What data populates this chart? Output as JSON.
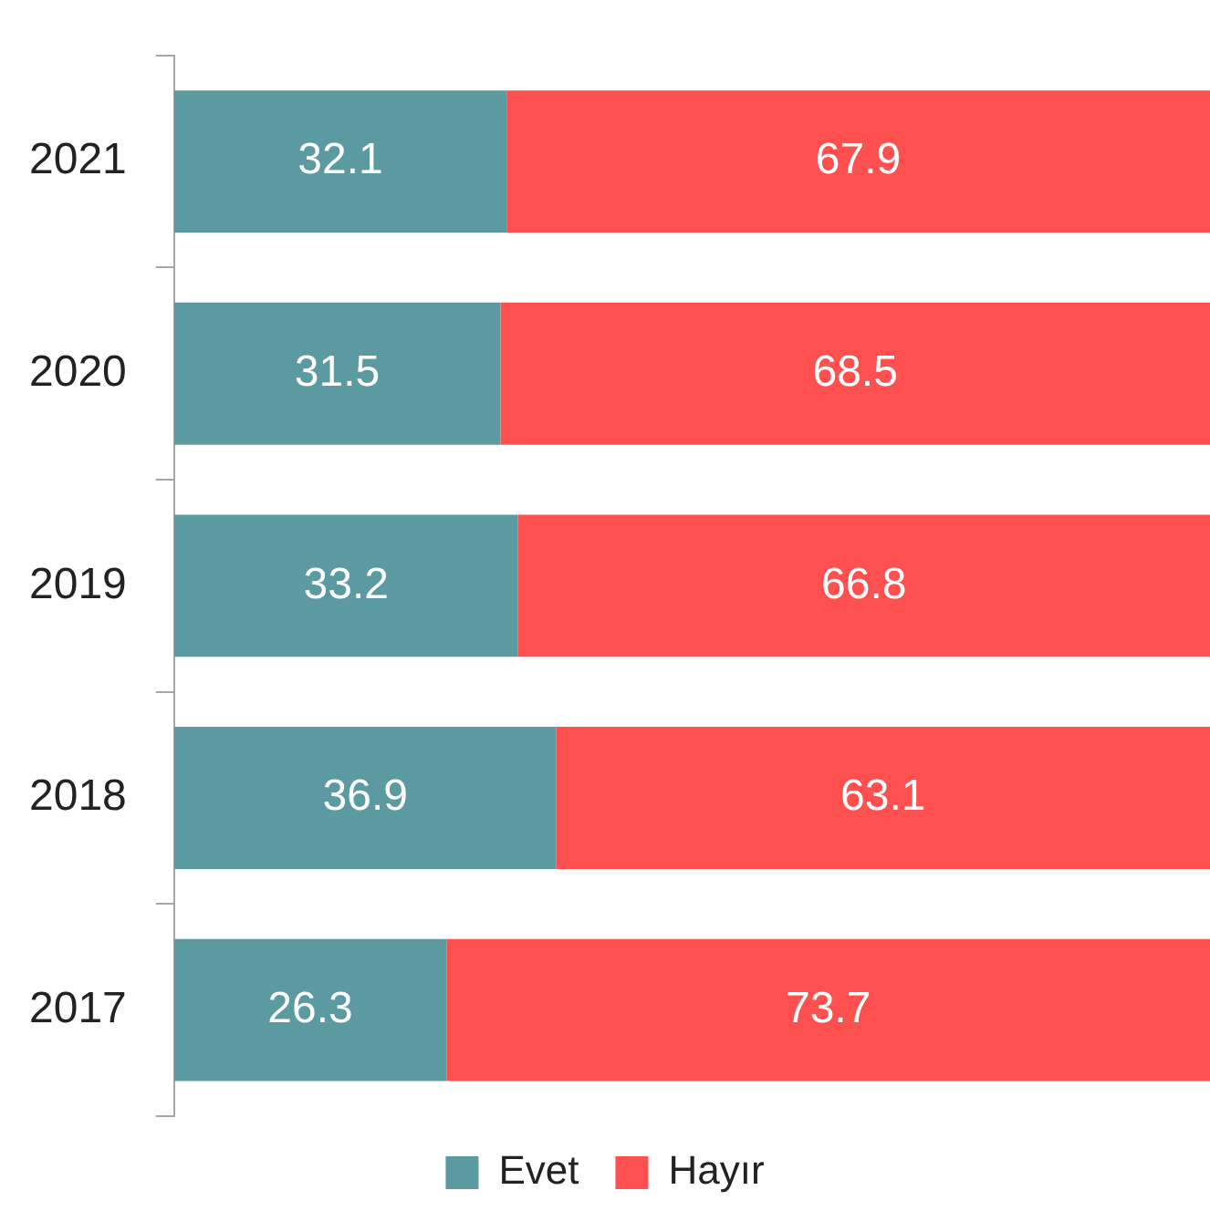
{
  "chart_data": {
    "type": "bar",
    "orientation": "horizontal",
    "stacked": true,
    "categories": [
      "2021",
      "2020",
      "2019",
      "2018",
      "2017"
    ],
    "series": [
      {
        "name": "Evet",
        "color": "#5b9aa0",
        "values": [
          32.1,
          31.5,
          33.2,
          36.9,
          26.3
        ]
      },
      {
        "name": "Hayır",
        "color": "#ff5050",
        "values": [
          67.9,
          68.5,
          66.8,
          63.1,
          73.7
        ]
      }
    ],
    "xlim": [
      0,
      100
    ],
    "tick_labels": "y",
    "data_labels": true,
    "legend": "bottom",
    "grid": false
  }
}
